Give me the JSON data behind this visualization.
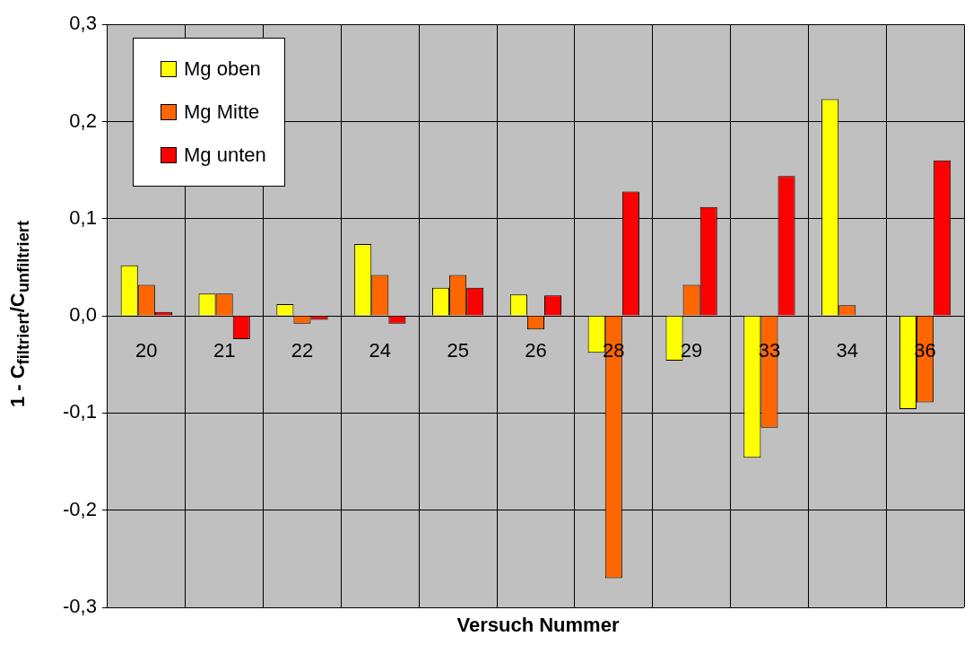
{
  "chart_data": {
    "type": "bar",
    "xlabel": "Versuch Nummer",
    "ylabel": "1 - C$_{filtriert}$/C$_{unfiltriert}$",
    "categories": [
      "20",
      "21",
      "22",
      "24",
      "25",
      "26",
      "28",
      "29",
      "33",
      "34",
      "36"
    ],
    "series": [
      {
        "name": "Mg oben",
        "color": "#ffff00",
        "values": [
          0.052,
          0.023,
          0.012,
          0.074,
          0.029,
          0.022,
          -0.038,
          -0.046,
          -0.146,
          0.223,
          -0.096
        ]
      },
      {
        "name": "Mg Mitte",
        "color": "#ff6600",
        "values": [
          0.032,
          0.023,
          -0.008,
          0.042,
          0.042,
          -0.014,
          -0.27,
          0.032,
          -0.115,
          0.011,
          -0.089
        ]
      },
      {
        "name": "Mg unten",
        "color": "#ff0000",
        "values": [
          0.004,
          -0.024,
          -0.004,
          -0.008,
          0.029,
          0.021,
          0.128,
          0.112,
          0.144,
          null,
          0.16
        ]
      }
    ],
    "ylim": [
      -0.3,
      0.3
    ],
    "yticks": [
      {
        "value": -0.3,
        "label": "-0,3"
      },
      {
        "value": -0.2,
        "label": "-0,2"
      },
      {
        "value": -0.1,
        "label": "-0,1"
      },
      {
        "value": 0,
        "label": "0,0"
      },
      {
        "value": 0.1,
        "label": "0,1"
      },
      {
        "value": 0.2,
        "label": "0,2"
      },
      {
        "value": 0.3,
        "label": "0,3"
      }
    ],
    "grid": true,
    "legend": "top left"
  }
}
